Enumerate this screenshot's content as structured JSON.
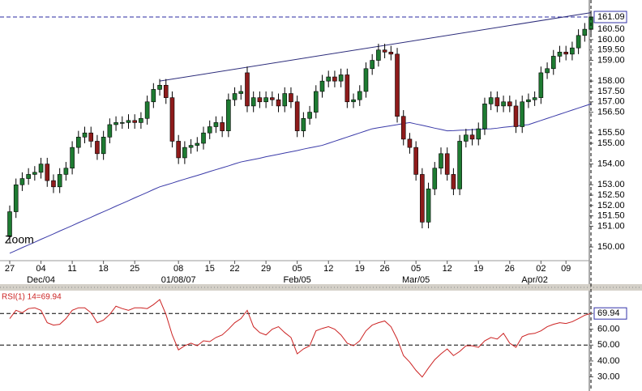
{
  "chart_data": [
    {
      "type": "candlestick",
      "annotation": "Zoom",
      "categories": [
        "27",
        null,
        null,
        null,
        null,
        "04",
        null,
        null,
        null,
        null,
        "11",
        null,
        null,
        null,
        null,
        "18",
        null,
        null,
        null,
        null,
        "25",
        null,
        null,
        null,
        null,
        null,
        null,
        "08",
        null,
        null,
        null,
        null,
        "15",
        null,
        null,
        null,
        "22",
        null,
        null,
        null,
        null,
        "29",
        null,
        null,
        null,
        null,
        "05",
        null,
        null,
        null,
        null,
        "12",
        null,
        null,
        null,
        null,
        "19",
        null,
        null,
        null,
        "26",
        null,
        null,
        null,
        null,
        "05",
        null,
        null,
        null,
        null,
        "12",
        null,
        null,
        null,
        null,
        "19",
        null,
        null,
        null,
        null,
        "26",
        null,
        null,
        null,
        null,
        "02",
        null,
        null,
        null,
        "09",
        null,
        null,
        null,
        null
      ],
      "category_groups": [
        null,
        null,
        null,
        null,
        null,
        "Dec/04",
        null,
        null,
        null,
        null,
        null,
        null,
        null,
        null,
        null,
        null,
        null,
        null,
        null,
        null,
        null,
        null,
        null,
        null,
        null,
        null,
        null,
        "01/08/07",
        null,
        null,
        null,
        null,
        null,
        null,
        null,
        null,
        null,
        null,
        null,
        null,
        null,
        null,
        null,
        null,
        null,
        null,
        "Feb/05",
        null,
        null,
        null,
        null,
        null,
        null,
        null,
        null,
        null,
        null,
        null,
        null,
        null,
        null,
        null,
        null,
        null,
        null,
        "Mar/05",
        null,
        null,
        null,
        null,
        null,
        null,
        null,
        null,
        null,
        null,
        null,
        null,
        null,
        null,
        null,
        null,
        null,
        null,
        "Apr/02",
        null,
        null,
        null,
        null,
        null,
        null,
        null,
        null
      ],
      "open": [
        150.5,
        151.7,
        153,
        153.3,
        153.5,
        153.6,
        154,
        153.2,
        152.9,
        153.5,
        153.8,
        154.8,
        155.3,
        155.5,
        155.1,
        154.5,
        155.3,
        155.9,
        156,
        156,
        156.1,
        156,
        156.2,
        157,
        157.6,
        157.8,
        157.2,
        155.1,
        154.3,
        154.8,
        154.9,
        155,
        155.5,
        155.8,
        156,
        155.6,
        157.1,
        157.4,
        158.4,
        156.8,
        157.2,
        157,
        157.2,
        157.1,
        156.8,
        157.4,
        157,
        155.6,
        156.2,
        156.5,
        157.5,
        158,
        158.2,
        158,
        158.3,
        157,
        157.1,
        157.5,
        158.6,
        159,
        159.5,
        159.4,
        159.3,
        156.3,
        155.2,
        154.8,
        153.5,
        151.2,
        152.8,
        153.8,
        154.5,
        153.5,
        152.8,
        155.1,
        155.4,
        155.2,
        155.7,
        156.9,
        157.2,
        156.8,
        157,
        156.8,
        155.8,
        157,
        157.1,
        157.2,
        158.4,
        158.6,
        159.2,
        159.4,
        159.3,
        159.6,
        160.2,
        160.5
      ],
      "high": [
        152.0,
        153.3,
        153.6,
        153.8,
        153.9,
        154.3,
        154.3,
        153.5,
        153.8,
        154.1,
        155.1,
        155.6,
        155.8,
        155.8,
        155.4,
        155.6,
        156.2,
        156.3,
        156.3,
        156.4,
        156.4,
        156.5,
        157.3,
        157.9,
        158.1,
        158.1,
        157.5,
        155.4,
        155.1,
        155.2,
        155.3,
        155.8,
        156.1,
        156.3,
        156.3,
        157.4,
        157.7,
        157.8,
        158.7,
        157.5,
        157.5,
        157.5,
        157.5,
        157.4,
        157.7,
        157.7,
        157.3,
        156.5,
        156.8,
        157.8,
        158.3,
        158.5,
        158.5,
        158.6,
        158.6,
        157.4,
        157.8,
        158.9,
        159.3,
        159.8,
        159.8,
        159.7,
        159.6,
        156.6,
        155.5,
        155.1,
        153.8,
        153.1,
        154.1,
        154.8,
        154.8,
        153.8,
        155.4,
        155.7,
        155.7,
        156.0,
        157.2,
        157.5,
        157.5,
        157.3,
        157.3,
        157.1,
        157.3,
        157.4,
        157.5,
        158.7,
        158.9,
        159.5,
        159.7,
        159.7,
        159.9,
        160.5,
        160.8,
        161.4
      ],
      "low": [
        150.2,
        151.4,
        152.7,
        153.0,
        153.2,
        153.3,
        152.9,
        152.6,
        152.6,
        153.2,
        153.5,
        154.5,
        155.0,
        154.8,
        154.2,
        154.2,
        155.0,
        155.6,
        155.7,
        155.7,
        155.7,
        155.7,
        155.9,
        156.7,
        157.3,
        156.9,
        154.8,
        154.0,
        154.0,
        154.5,
        154.6,
        154.7,
        155.2,
        155.5,
        155.3,
        155.3,
        156.8,
        157.1,
        156.5,
        156.5,
        156.7,
        156.7,
        156.8,
        156.5,
        156.5,
        156.7,
        155.3,
        155.3,
        155.9,
        156.2,
        157.2,
        157.7,
        157.7,
        157.7,
        156.7,
        156.7,
        156.8,
        157.2,
        158.3,
        158.7,
        159.1,
        159.0,
        156.0,
        154.9,
        154.5,
        153.2,
        150.9,
        150.9,
        152.5,
        153.5,
        153.2,
        152.5,
        152.5,
        154.8,
        154.9,
        154.9,
        155.4,
        156.6,
        156.5,
        156.5,
        156.5,
        155.5,
        155.5,
        156.7,
        156.8,
        156.9,
        158.1,
        158.3,
        158.9,
        159.0,
        159.0,
        159.3,
        159.9,
        160.2
      ],
      "close": [
        151.7,
        153,
        153.3,
        153.5,
        153.6,
        154,
        153.2,
        152.9,
        153.5,
        153.8,
        154.8,
        155.3,
        155.5,
        155.1,
        154.5,
        155.3,
        155.9,
        156,
        156,
        156.1,
        156,
        156.2,
        157,
        157.6,
        157.8,
        157.2,
        155.1,
        154.3,
        154.8,
        154.9,
        155,
        155.5,
        155.8,
        156,
        155.6,
        157.1,
        157.4,
        157.5,
        156.8,
        157.2,
        157,
        157.2,
        157.1,
        156.8,
        157.4,
        157,
        155.6,
        156.2,
        156.5,
        157.5,
        158,
        158.2,
        158,
        158.3,
        157,
        157.1,
        157.5,
        158.6,
        159,
        159.5,
        159.4,
        159.3,
        156.3,
        155.2,
        154.8,
        153.5,
        151.2,
        152.8,
        153.8,
        154.5,
        153.5,
        152.8,
        155.1,
        155.4,
        155.2,
        155.7,
        156.9,
        157.2,
        156.8,
        157,
        156.8,
        155.8,
        157,
        157.1,
        157.2,
        158.4,
        158.6,
        159.2,
        159.4,
        159.3,
        159.6,
        160.2,
        160.5,
        161.09
      ],
      "up_color": "#1e7b32",
      "down_color": "#8e1b1b",
      "overlay": {
        "type": "line",
        "color": "#3a3aa8",
        "values": [
          149.7,
          149.83,
          149.97,
          150.1,
          150.23,
          150.37,
          150.5,
          150.63,
          150.77,
          150.9,
          151.03,
          151.17,
          151.3,
          151.43,
          151.57,
          151.7,
          151.83,
          151.97,
          152.1,
          152.23,
          152.37,
          152.5,
          152.63,
          152.77,
          152.9,
          152.99,
          153.08,
          153.18,
          153.27,
          153.36,
          153.45,
          153.54,
          153.64,
          153.73,
          153.82,
          153.91,
          154.01,
          154.1,
          154.16,
          154.22,
          154.28,
          154.35,
          154.41,
          154.47,
          154.53,
          154.59,
          154.65,
          154.72,
          154.78,
          154.84,
          154.9,
          155.0,
          155.1,
          155.2,
          155.3,
          155.4,
          155.5,
          155.6,
          155.7,
          155.75,
          155.8,
          155.85,
          155.9,
          155.95,
          156.0,
          155.93,
          155.87,
          155.8,
          155.73,
          155.67,
          155.6,
          155.61,
          155.63,
          155.64,
          155.66,
          155.67,
          155.69,
          155.7,
          155.73,
          155.77,
          155.8,
          155.83,
          155.87,
          155.9,
          156.0,
          156.1,
          156.2,
          156.3,
          156.4,
          156.5,
          156.6,
          156.7,
          156.8,
          156.9
        ]
      },
      "trendline": {
        "x": [
          24,
          93
        ],
        "values": [
          158.0,
          161.3
        ],
        "color": "#2b2b7a"
      },
      "last_value": 161.09,
      "ylim": [
        149.34,
        161.91
      ],
      "yticks": [
        {
          "value": 161.09,
          "label": "161.09"
        },
        {
          "value": 160.5,
          "label": "160.50"
        },
        {
          "value": 160,
          "label": "160.00"
        },
        {
          "value": 159.5,
          "label": "159.50"
        },
        {
          "value": 159,
          "label": "159.00"
        },
        {
          "value": 158,
          "label": "158.00"
        },
        {
          "value": 157.5,
          "label": "157.50"
        },
        {
          "value": 157,
          "label": "157.00"
        },
        {
          "value": 156.5,
          "label": "156.50"
        },
        {
          "value": 155.5,
          "label": "155.50"
        },
        {
          "value": 155,
          "label": "155.00"
        },
        {
          "value": 154,
          "label": "154.00"
        },
        {
          "value": 153,
          "label": "153.00"
        },
        {
          "value": 152.5,
          "label": "152.50"
        },
        {
          "value": 152,
          "label": "152.00"
        },
        {
          "value": 151.5,
          "label": "151.50"
        },
        {
          "value": 151,
          "label": "151.00"
        },
        {
          "value": 150,
          "label": "150.00"
        }
      ]
    },
    {
      "type": "line",
      "title": "RSI(1) 14=69.94",
      "color": "#cc2222",
      "values": [
        66.7,
        71.9,
        70.4,
        73.0,
        73.5,
        71.9,
        64.1,
        62.6,
        63.1,
        66.7,
        71.9,
        73.5,
        73.5,
        70.4,
        64.1,
        65.7,
        69.3,
        74.5,
        73.0,
        71.9,
        73.5,
        73.5,
        73.0,
        75.5,
        78.7,
        69.3,
        56.4,
        47.0,
        49.6,
        51.2,
        49.6,
        52.7,
        52.2,
        54.8,
        56.4,
        60.0,
        64.1,
        66.7,
        71.9,
        61.6,
        57.9,
        56.4,
        60.0,
        61.6,
        57.9,
        54.8,
        44.5,
        47.6,
        49.6,
        59.0,
        60.5,
        61.6,
        60.0,
        56.4,
        51.2,
        49.6,
        52.7,
        59.0,
        62.6,
        64.1,
        65.2,
        61.6,
        53.8,
        43.4,
        39.3,
        34.1,
        29.9,
        35.6,
        40.8,
        44.5,
        47.6,
        43.4,
        46.0,
        49.6,
        49.6,
        48.6,
        52.7,
        54.8,
        53.8,
        57.4,
        51.2,
        48.6,
        55.3,
        56.9,
        57.4,
        59.0,
        61.6,
        63.1,
        64.1,
        63.6,
        64.7,
        66.7,
        68.8,
        69.94
      ],
      "dashed_lines": [
        69.94,
        50
      ],
      "ylim": [
        21.1,
        83.8
      ],
      "yticks": [
        69.94,
        {
          "value": 60,
          "label": "60.00"
        },
        {
          "value": 50,
          "label": "50.00"
        },
        {
          "value": 40,
          "label": "40.00"
        },
        {
          "value": 30,
          "label": "30.00"
        }
      ]
    }
  ]
}
